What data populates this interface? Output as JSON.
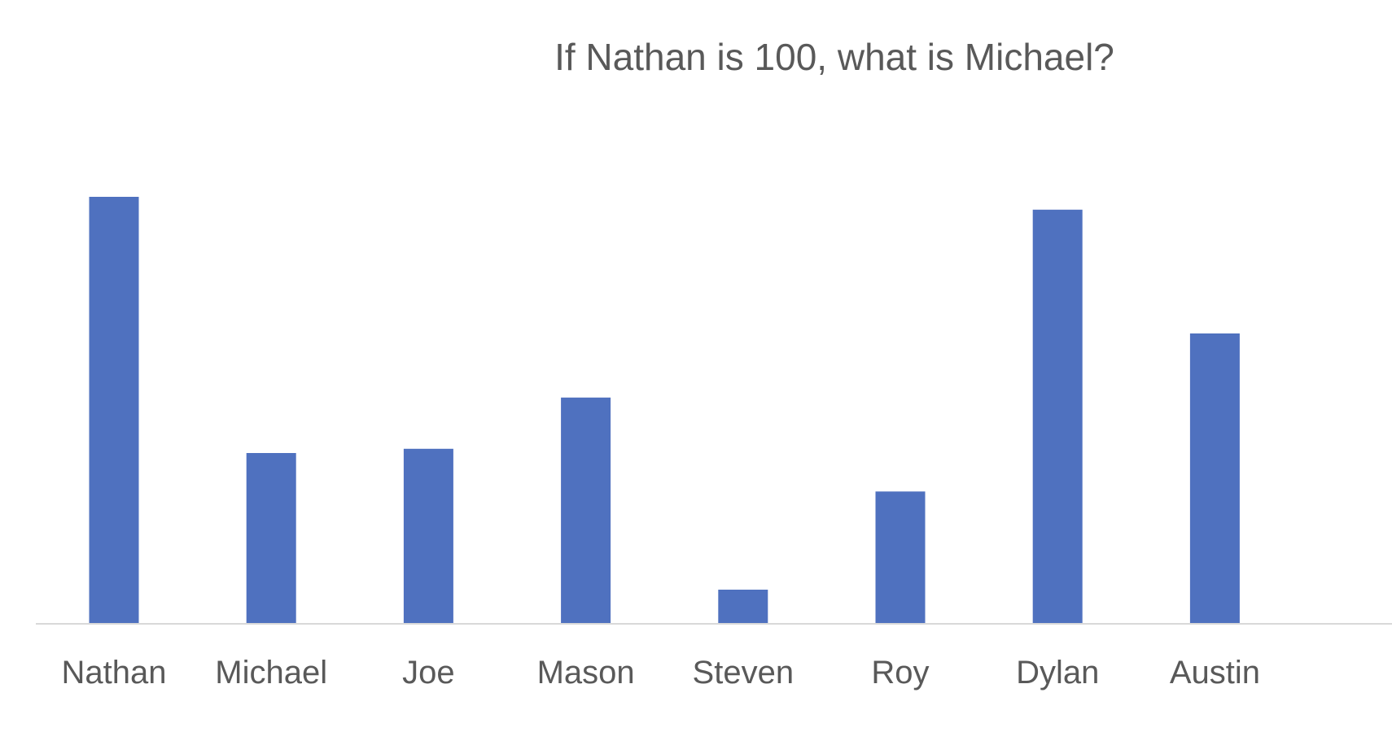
{
  "chart_data": {
    "type": "bar",
    "title": "If Nathan is 100, what is Michael?",
    "xlabel": "",
    "ylabel": "",
    "categories": [
      "Nathan",
      "Michael",
      "Joe",
      "Mason",
      "Steven",
      "Roy",
      "Dylan",
      "Austin"
    ],
    "values": [
      100,
      40,
      41,
      53,
      8,
      31,
      97,
      68
    ],
    "ylim": [
      0,
      100
    ],
    "grid": false,
    "legend": "none",
    "bar_color": "#4f71bf",
    "axis_color": "#d9d9d9",
    "text_color": "#595959"
  }
}
